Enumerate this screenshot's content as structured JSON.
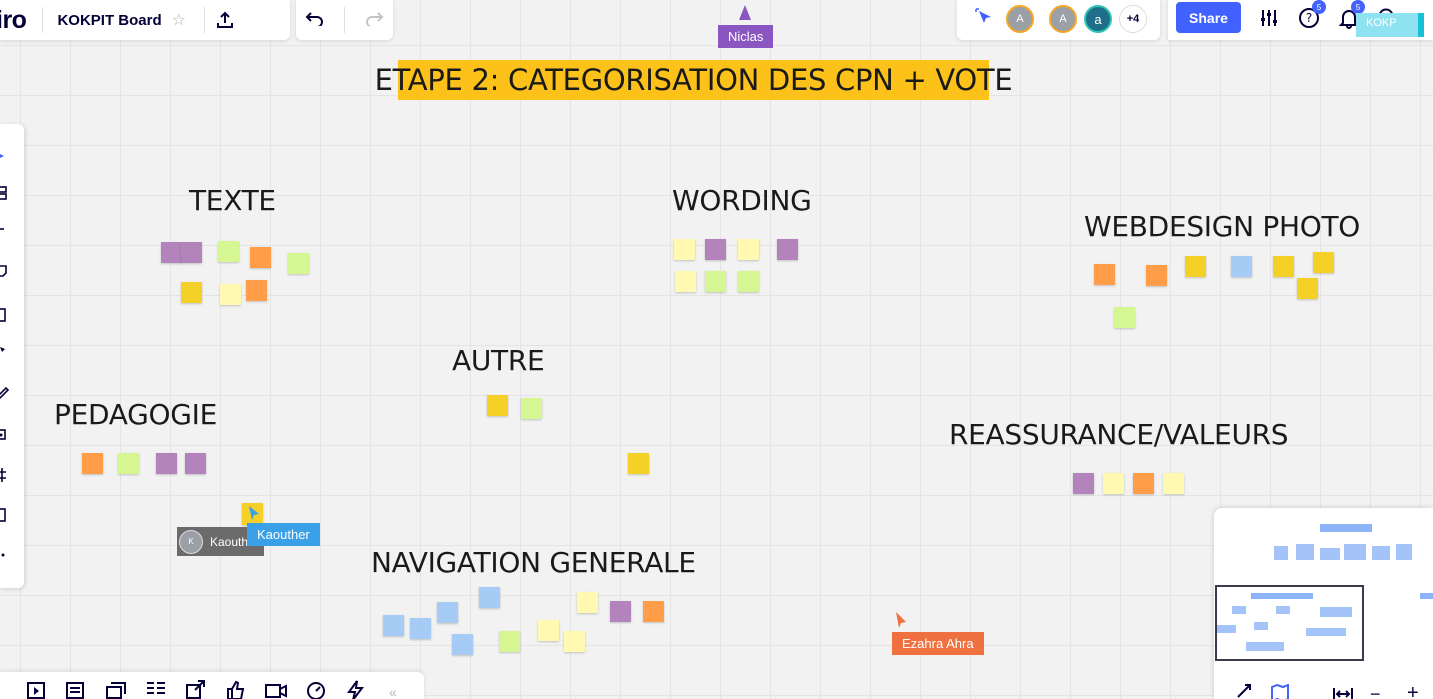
{
  "app": {
    "logo": "iro",
    "board_title": "KOKPIT Board"
  },
  "toolbar": {
    "share_label": "Share",
    "help_badge": "5",
    "notif_badge": "5"
  },
  "collaborators": {
    "avatars": [
      {
        "initial": "A",
        "color": "#9aa0a6",
        "ring": "#f5a623"
      },
      {
        "initial": "A",
        "color": "#9aa0a6",
        "ring": "#f5a623"
      },
      {
        "initial": "a",
        "color": "#1f6f8b",
        "ring": "#2ec4b6"
      }
    ],
    "more": "+4",
    "corner_label": "KOKP"
  },
  "board": {
    "banner": "ETAPE 2: CATEGORISATION DES CPN + VOTE",
    "headings": {
      "texte": "TEXTE",
      "wording": "WORDING",
      "webdesign": "WEBDESIGN PHOTO",
      "autre": "AUTRE",
      "pedagogie": "PEDAGOGIE",
      "reassurance": "REASSURANCE/VALEURS",
      "navigation": "NAVIGATION GENERALE"
    }
  },
  "cursors": {
    "niclas": {
      "name": "Niclas",
      "color": "#8a56c2"
    },
    "kaouther": {
      "name": "Kaouther",
      "color": "#3aa0e8"
    },
    "kaouth_tag": {
      "name": "Kaouth",
      "initial": "K"
    },
    "ezahra": {
      "name": "Ezahra Ahra",
      "color": "#f07140"
    }
  },
  "colors": {
    "accent": "#4262ff",
    "banner": "#fcc219"
  }
}
